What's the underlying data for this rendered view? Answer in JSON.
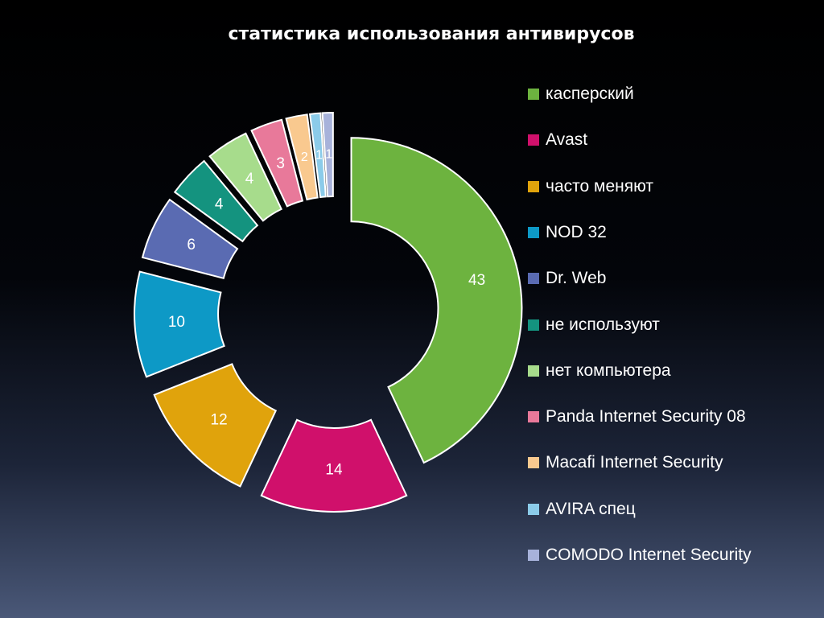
{
  "chart_data": {
    "type": "pie",
    "title": "статистика использования антивирусов",
    "categories": [
      "касперский",
      "Avast",
      "часто меняют",
      "NOD 32",
      "Dr. Web",
      "не используют",
      "нет компьютера",
      "Panda Internet Security 08",
      "Macafi Internet Security",
      "AVIRA спец",
      "COMODO Internet Security"
    ],
    "values": [
      43,
      14,
      12,
      10,
      6,
      4,
      4,
      3,
      2,
      1,
      1
    ],
    "data_labels": [
      "43",
      "14",
      "12",
      "10",
      "6",
      "4",
      "4",
      "3",
      "2",
      "1",
      "1"
    ],
    "colors": [
      "#6db33f",
      "#d0106b",
      "#e0a30c",
      "#0d99c6",
      "#5a6bb2",
      "#14937f",
      "#a7dc8c",
      "#e8799a",
      "#f9c98f",
      "#8bcbe9",
      "#a7b2da"
    ],
    "legend_position": "right",
    "style": "exploded doughnut"
  }
}
